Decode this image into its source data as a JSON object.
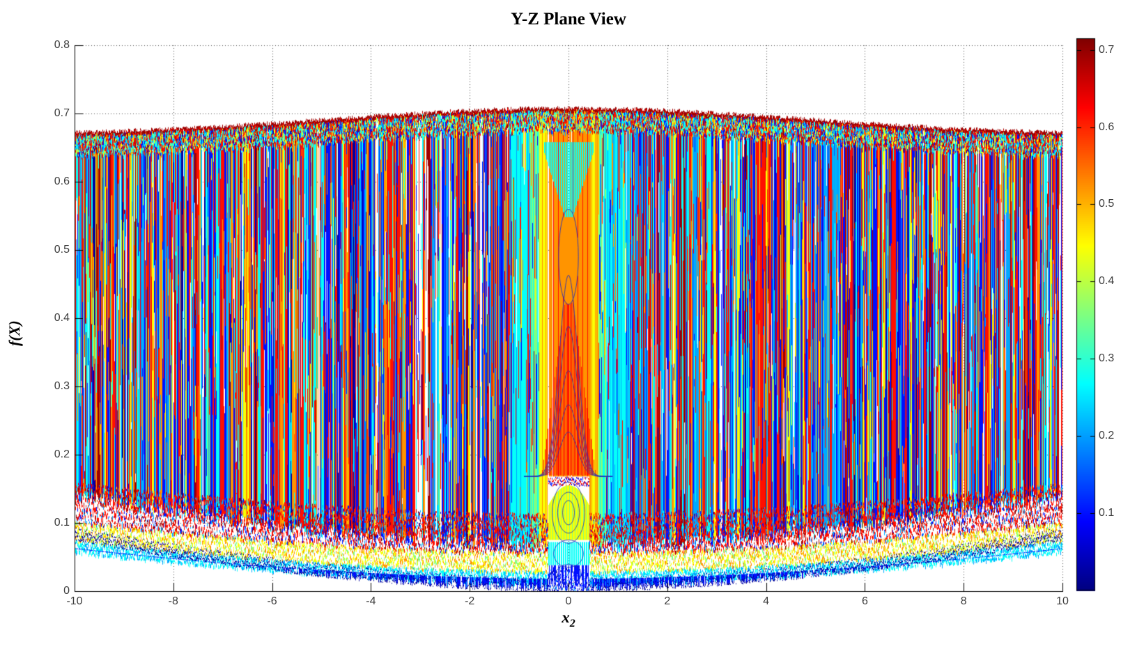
{
  "title": "Y-Z Plane View",
  "axes": {
    "x": {
      "label_base": "x",
      "label_sub": "2",
      "ticks": [
        -10,
        -8,
        -6,
        -4,
        -2,
        0,
        2,
        4,
        6,
        8,
        10
      ],
      "tick_labels": [
        "-10",
        "-8",
        "-6",
        "-4",
        "-2",
        "0",
        "2",
        "4",
        "6",
        "8",
        "10"
      ],
      "range": [
        -10,
        10
      ]
    },
    "y": {
      "label": "f(X)",
      "ticks": [
        0,
        0.1,
        0.2,
        0.3,
        0.4,
        0.5,
        0.6,
        0.7,
        0.8
      ],
      "tick_labels": [
        "0",
        "0.1",
        "0.2",
        "0.3",
        "0.4",
        "0.5",
        "0.6",
        "0.7",
        "0.8"
      ],
      "range": [
        0,
        0.8
      ]
    },
    "grid_style": "dotted"
  },
  "colorbar": {
    "colormap": "jet",
    "value_min": 0,
    "value_max": 0.715,
    "ticks": [
      0.1,
      0.2,
      0.3,
      0.4,
      0.5,
      0.6,
      0.7
    ],
    "tick_labels": [
      "0.1",
      "0.2",
      "0.3",
      "0.4",
      "0.5",
      "0.6",
      "0.7"
    ],
    "top_color": "#7f0000",
    "bottom_color": "#00008f"
  },
  "chart_data": {
    "type": "line",
    "title": "Y-Z Plane View",
    "xlabel": "x_2",
    "ylabel": "f(X)",
    "xlim": [
      -10,
      10
    ],
    "ylim": [
      0,
      0.8
    ],
    "legend": "none",
    "grid": "dotted",
    "colormap": "jet",
    "description": "Y-Z plane projection of a 3D mesh surface f(X): ~1400 rapidly oscillating vertical traces colored by height (jet colormap), filling the region between an upper and lower envelope; peak value ~0.707 at x2=0.",
    "series": [
      {
        "name": "upper_envelope",
        "x": [
          -10,
          -8,
          -6,
          -4,
          -2,
          -1,
          0,
          1,
          2,
          4,
          6,
          8,
          10
        ],
        "y": [
          0.672,
          0.677,
          0.684,
          0.692,
          0.701,
          0.705,
          0.708,
          0.705,
          0.701,
          0.692,
          0.684,
          0.677,
          0.672
        ]
      },
      {
        "name": "lower_envelope",
        "x": [
          -10,
          -8,
          -6,
          -4,
          -2,
          -1,
          0,
          1,
          2,
          4,
          6,
          8,
          10
        ],
        "y": [
          0.075,
          0.056,
          0.04,
          0.022,
          0.007,
          0.002,
          0.0,
          0.002,
          0.007,
          0.022,
          0.04,
          0.056,
          0.075
        ]
      }
    ],
    "features": [
      "dark-red speckled crust along upper envelope (~0.67-0.71)",
      "multicolor speckle transition band just below the crust",
      "dense 1-px vertical barcode stripes (red/blue/cyan/orange/yellow/white) through the body",
      "cyan dome at center top (|x2|<0.5, 0.55-0.66)",
      "orange striped column at center (|x2|<0.45) with yellow/green flanks",
      "red striped triangle at center, apex (0, 0.46), base at 0.17",
      "nested blue bell-curve outlines under the triangle (0.17-0.46)",
      "yellow ellipse band at center bottom (0.075-0.155) with blue outlines",
      "cyan band below it (0.038-0.072)",
      "red-dense speckle band across the flanks (~0.06-0.16)",
      "blue comb fringe with dark-blue tips along the lower envelope"
    ]
  }
}
